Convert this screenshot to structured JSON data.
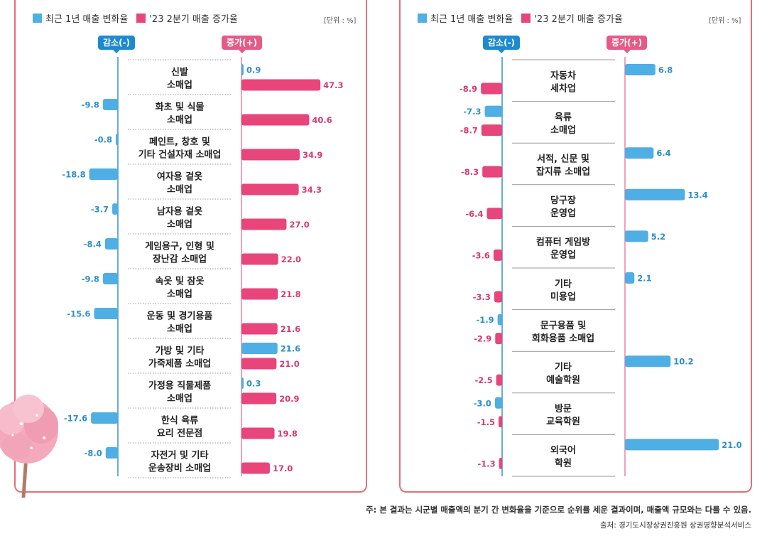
{
  "legend": {
    "recent": "최근 1년 매출 변화율",
    "q2": "'23 2분기 매출 증가율"
  },
  "unit": "[단위 : %]",
  "labels": {
    "decrease": "감소(-)",
    "increase": "증가(+)"
  },
  "colors": {
    "blue": "#4faee3",
    "pink": "#e8457a",
    "blueText": "#2c8fc9",
    "pinkText": "#d53b6c",
    "axisBlue": "#2a8ccb",
    "axisPink": "#e87aa0"
  },
  "chart_data": [
    {
      "type": "bar",
      "categories": [
        [
          "신발",
          "소매업"
        ],
        [
          "화초 및 식물",
          "소매업"
        ],
        [
          "페인트, 창호 및",
          "기타 건설자재 소매업"
        ],
        [
          "여자용 겉옷",
          "소매업"
        ],
        [
          "남자용 겉옷",
          "소매업"
        ],
        [
          "게임용구, 인형 및",
          "장난감 소매업"
        ],
        [
          "속옷 및 잠옷",
          "소매업"
        ],
        [
          "운동 및 경기용품",
          "소매업"
        ],
        [
          "가방 및 기타",
          "가죽제품 소매업"
        ],
        [
          "가정용 직물제품",
          "소매업"
        ],
        [
          "한식 육류",
          "요리 전문점"
        ],
        [
          "자전거 및 기타",
          "운송장비 소매업"
        ]
      ],
      "series": [
        {
          "name": "최근 1년 매출 변화율",
          "values": [
            0.9,
            -9.8,
            -0.8,
            -18.8,
            -3.7,
            -8.4,
            -9.8,
            -15.6,
            21.6,
            0.3,
            -17.6,
            -8.0
          ],
          "labels": [
            "0.9",
            "-9.8",
            "-0.8",
            "-18.8",
            "-3.7",
            "-8.4",
            "-9.8",
            "-15.6",
            "21.6",
            "0.3",
            "-17.6",
            "-8.0"
          ]
        },
        {
          "name": "'23 2분기 매출 증가율",
          "values": [
            47.3,
            40.6,
            34.9,
            34.3,
            27.0,
            22.0,
            21.8,
            21.6,
            21.0,
            20.9,
            19.8,
            17.0
          ],
          "labels": [
            "47.3",
            "40.6",
            "34.9",
            "34.3",
            "27.0",
            "22.0",
            "21.8",
            "21.6",
            "21.0",
            "20.9",
            "19.8",
            "17.0"
          ]
        }
      ]
    },
    {
      "type": "bar",
      "categories": [
        [
          "자동차",
          "세차업"
        ],
        [
          "육류",
          "소매업"
        ],
        [
          "서적, 신문 및",
          "잡지류 소매업"
        ],
        [
          "당구장",
          "운영업"
        ],
        [
          "컴퓨터 게임방",
          "운영업"
        ],
        [
          "기타",
          "미용업"
        ],
        [
          "문구용품 및",
          "회화용품 소매업"
        ],
        [
          "기타",
          "예술학원"
        ],
        [
          "방문",
          "교육학원"
        ],
        [
          "외국어",
          "학원"
        ]
      ],
      "series": [
        {
          "name": "최근 1년 매출 변화율",
          "values": [
            6.8,
            -7.3,
            6.4,
            13.4,
            5.2,
            2.1,
            -1.9,
            10.2,
            -3.0,
            21.0
          ],
          "labels": [
            "6.8",
            "-7.3",
            "6.4",
            "13.4",
            "5.2",
            "2.1",
            "-1.9",
            "10.2",
            "-3.0",
            "21.0"
          ]
        },
        {
          "name": "'23 2분기 매출 증가율",
          "values": [
            -8.9,
            -8.7,
            -8.3,
            -6.4,
            -3.6,
            -3.3,
            -2.9,
            -2.5,
            -1.5,
            -1.3
          ],
          "labels": [
            "-8.9",
            "-8.7",
            "-8.3",
            "-6.4",
            "-3.6",
            "-3.3",
            "-2.9",
            "-2.5",
            "-1.5",
            "-1.3"
          ]
        }
      ]
    }
  ],
  "footnote": "주: 본 결과는 시군별 매출액의 분기 간 변화율을 기준으로 순위를 세운 결과이며, 매출액 규모와는 다를 수 있음.",
  "source": "출처: 경기도시장상권진흥원 상권영향분석서비스"
}
